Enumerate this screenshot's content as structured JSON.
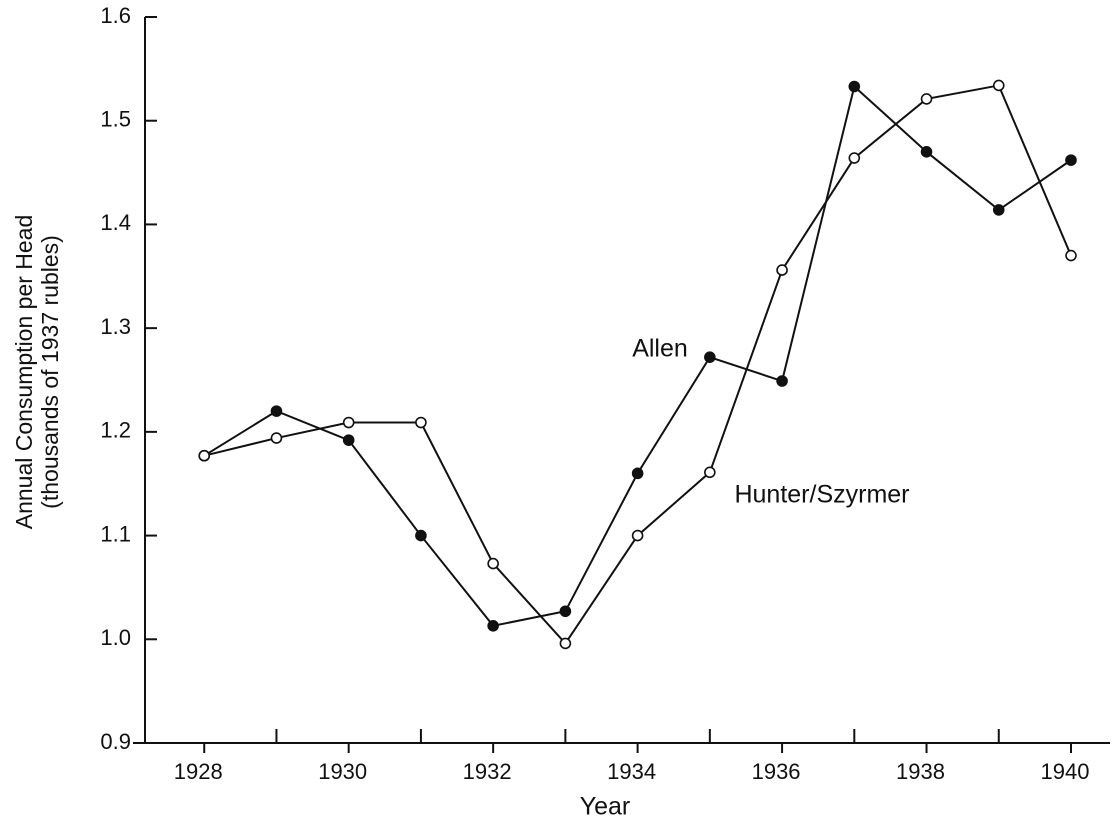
{
  "chart_data": {
    "type": "line",
    "x_label": "Year",
    "y_label": [
      "Annual Consumption per Head",
      "(thousands of 1937 rubles)"
    ],
    "x": [
      1928,
      1929,
      1930,
      1931,
      1932,
      1933,
      1934,
      1935,
      1936,
      1937,
      1938,
      1939,
      1940
    ],
    "series": [
      {
        "name": "Allen",
        "color": "#111111",
        "marker": "filled",
        "values": [
          1.177,
          1.22,
          1.192,
          1.1,
          1.013,
          1.027,
          1.16,
          1.272,
          1.249,
          1.533,
          1.47,
          1.414,
          1.462
        ]
      },
      {
        "name": "Hunter/Szyrmer",
        "color": "#111111",
        "marker": "open",
        "values": [
          1.177,
          1.194,
          1.209,
          1.209,
          1.073,
          0.996,
          1.1,
          1.161,
          1.356,
          1.464,
          1.521,
          1.534,
          1.37
        ]
      }
    ],
    "xlim": [
      1927.18,
      1940.54
    ],
    "xticks": [
      1928,
      1930,
      1932,
      1934,
      1936,
      1938,
      1940
    ],
    "xminorticks": [
      1929,
      1931,
      1933,
      1935,
      1937,
      1939
    ],
    "ylim": [
      0.9,
      1.6
    ],
    "yticks": [
      0.9,
      {
        "value": 1,
        "label": "1.0"
      },
      1.1,
      1.2,
      1.3,
      1.4,
      1.5,
      1.6
    ],
    "grid": false
  }
}
